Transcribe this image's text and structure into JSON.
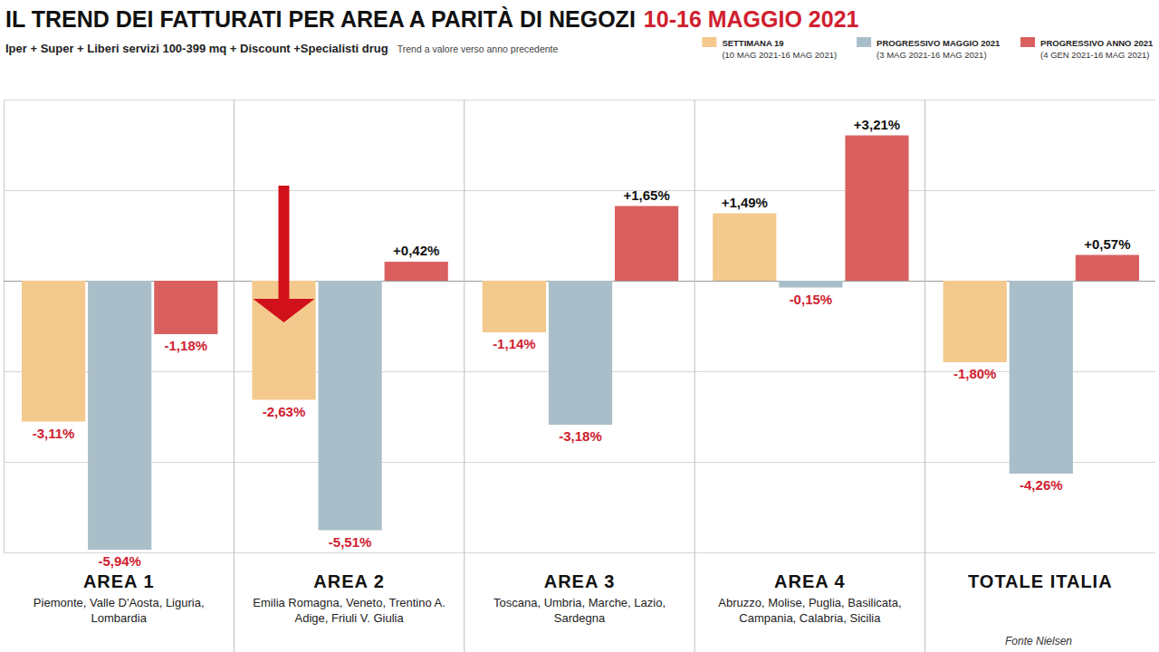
{
  "chart_data": {
    "type": "bar",
    "title": "IL TREND DEI FATTURATI PER AREA A PARITÀ DI NEGOZI",
    "title_highlight": "10-16 MAGGIO 2021",
    "subtitle": "Iper + Super + Liberi servizi 100-399 mq + Discount +Specialisti drug",
    "subtitle_note": "Trend a valore verso anno precedente",
    "source": "Fonte Nielsen",
    "categories": [
      "AREA 1",
      "AREA 2",
      "AREA 3",
      "AREA 4",
      "TOTALE ITALIA"
    ],
    "category_notes": [
      "Piemonte, Valle D'Aosta, Liguria, Lombardia",
      "Emilia Romagna, Veneto, Trentino A. Adige, Friuli V. Giulia",
      "Toscana, Umbria, Marche, Lazio, Sardegna",
      "Abruzzo, Molise, Puglia, Basilicata, Campania, Calabria, Sicilia",
      null
    ],
    "series": [
      {
        "name": "SETTIMANA 19",
        "period": "(10 MAG 2021-16 MAG 2021)",
        "color": "#f4c98e",
        "values": [
          -3.11,
          -2.63,
          -1.14,
          1.49,
          -1.8
        ],
        "value_labels": [
          "-3,11%",
          "-2,63%",
          "-1,14%",
          "+1,49%",
          "-1,80%"
        ]
      },
      {
        "name": "PROGRESSIVO MAGGIO 2021",
        "period": "(3 MAG 2021-16 MAG 2021)",
        "color": "#a9bec8",
        "values": [
          -5.94,
          -5.51,
          -3.18,
          -0.15,
          -4.26
        ],
        "value_labels": [
          "-5,94%",
          "-5,51%",
          "-3,18%",
          "-0,15%",
          "-4,26%"
        ]
      },
      {
        "name": "PROGRESSIVO ANNO 2021",
        "period": "(4 GEN 2021-16 MAG 2021)",
        "color": "#d9605f",
        "values": [
          -1.18,
          0.42,
          1.65,
          3.21,
          0.57
        ],
        "value_labels": [
          "-1,18%",
          "+0,42%",
          "+1,65%",
          "+3,21%",
          "+0,57%"
        ]
      }
    ],
    "ylim": [
      -6,
      4
    ],
    "yticks": [
      -6,
      -4,
      -2,
      0,
      2,
      4
    ],
    "grid": true,
    "tick_labels": false,
    "data_labels": true,
    "legend": "top-right"
  }
}
